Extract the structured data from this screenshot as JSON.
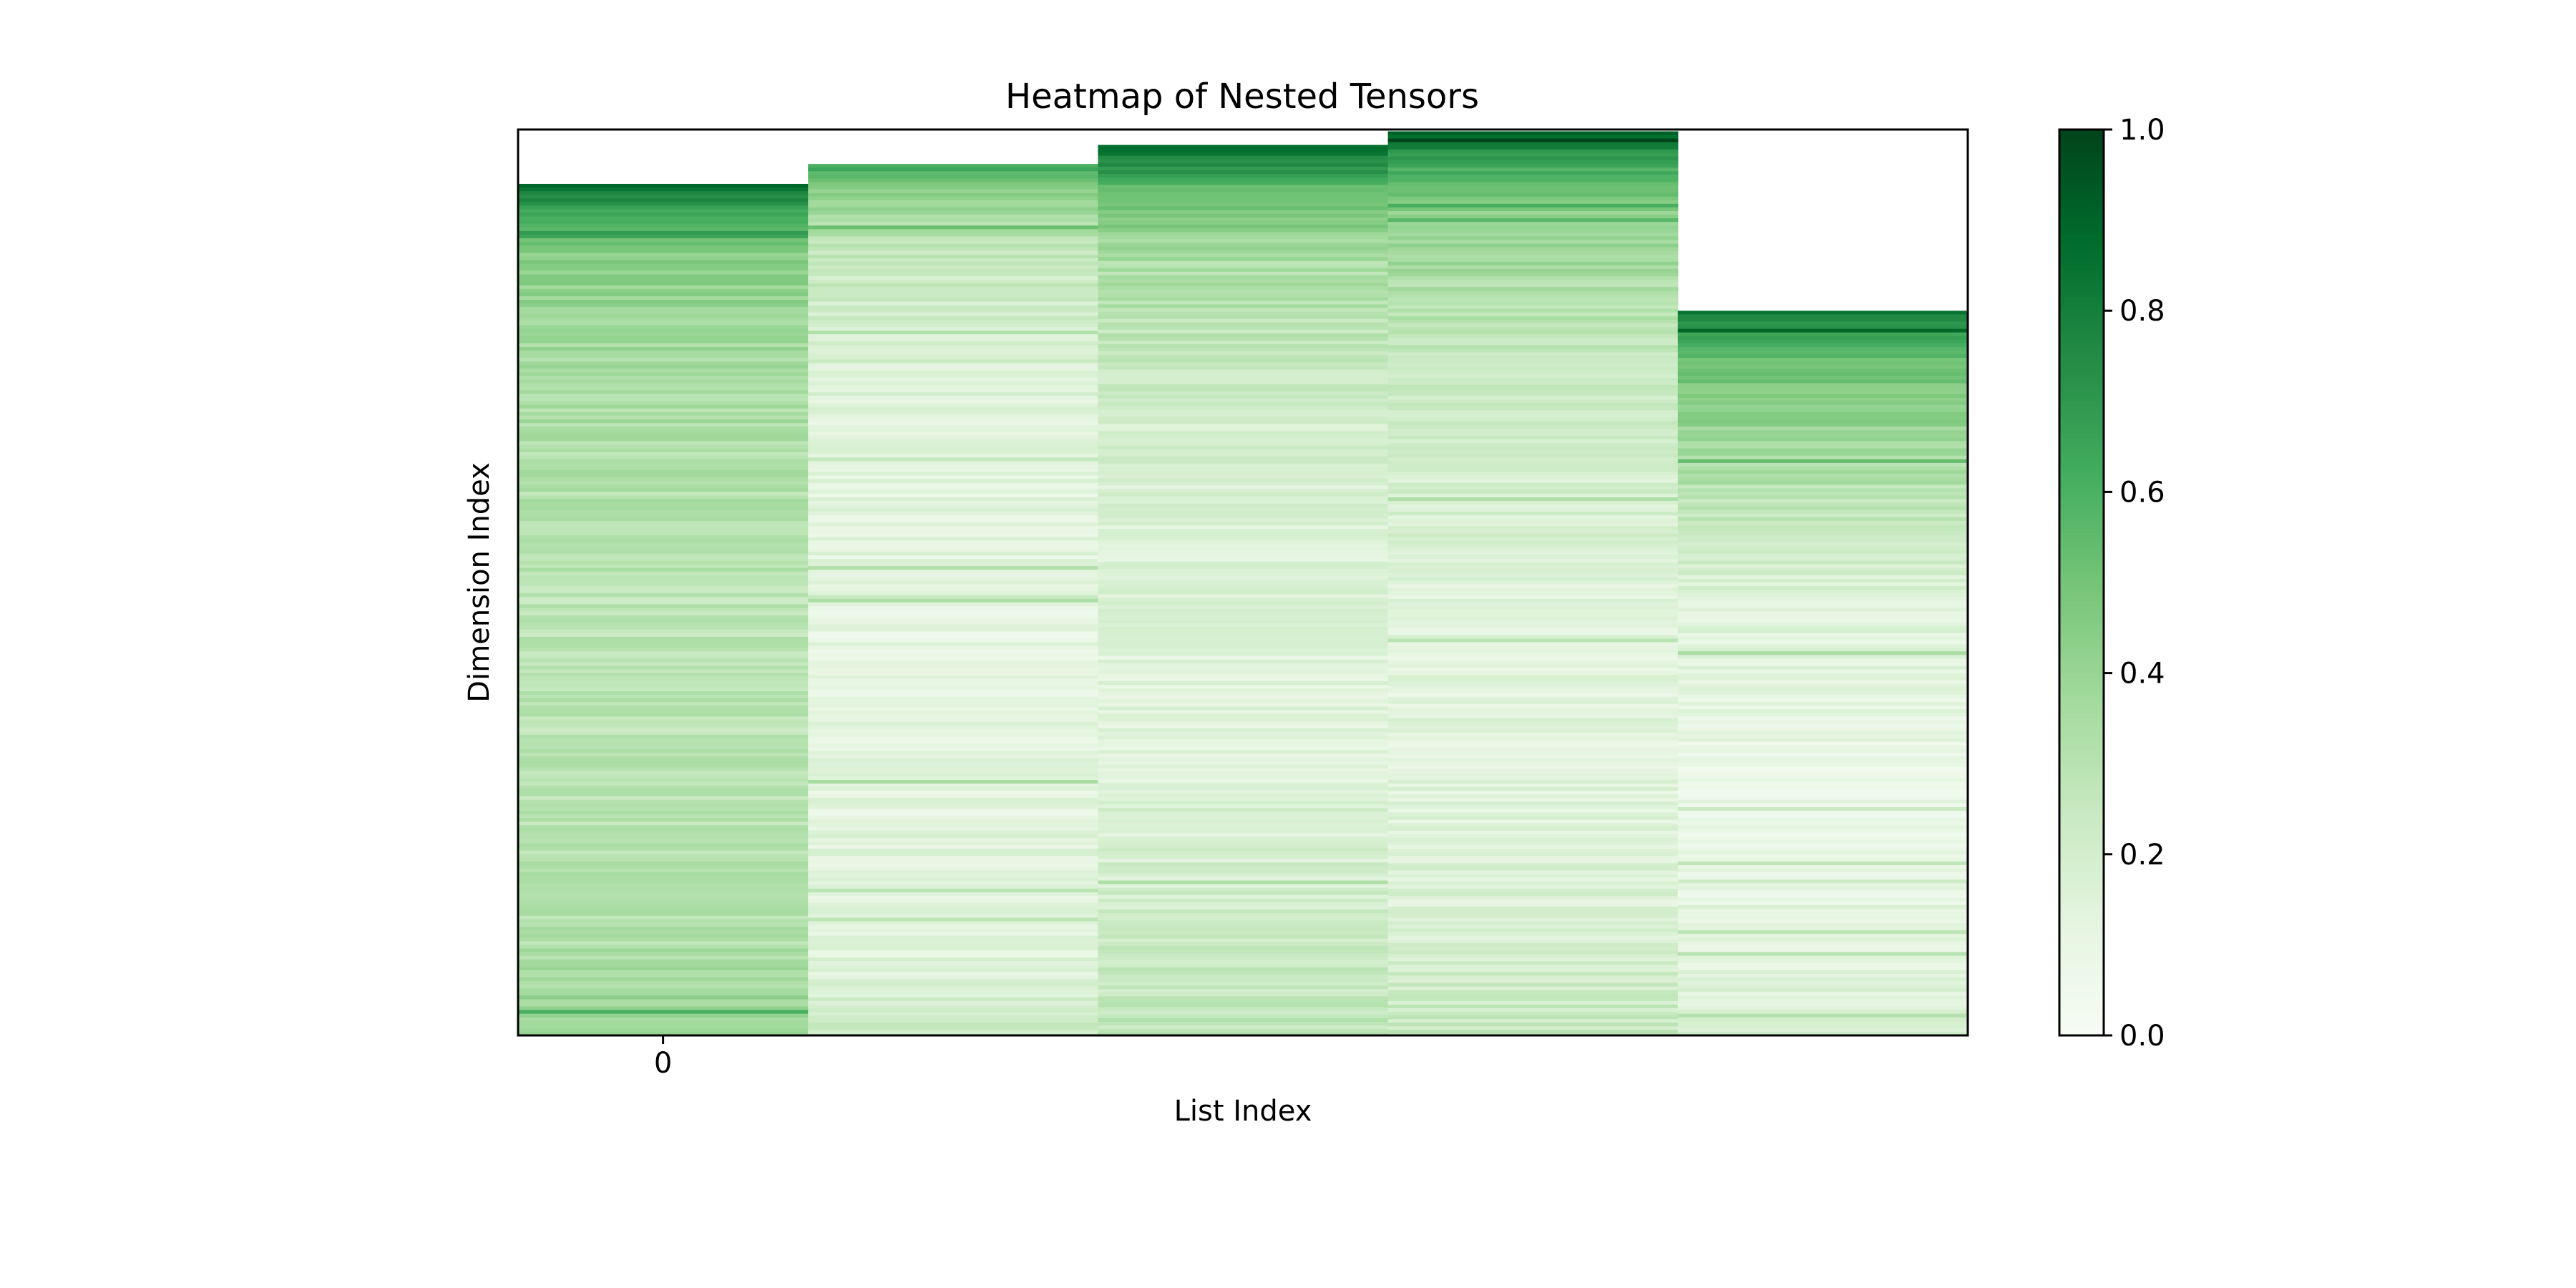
{
  "chart_data": {
    "type": "heatmap",
    "title": "Heatmap of Nested Tensors",
    "xlabel": "List Index",
    "ylabel": "Dimension Index",
    "x_ticks": [
      "0"
    ],
    "colormap": "Greens",
    "color_range": [
      0.0,
      1.0
    ],
    "colorbar_ticks": [
      "0.0",
      "0.2",
      "0.4",
      "0.6",
      "0.8",
      "1.0"
    ],
    "missing_color": "#ffffff",
    "frame_color": "#000000",
    "n_dims": 1000,
    "columns": [
      {
        "length": 940,
        "profile": [
          {
            "at": 0.0,
            "value": 0.92
          },
          {
            "at": 0.02,
            "value": 0.7
          },
          {
            "at": 0.08,
            "value": 0.45
          },
          {
            "at": 0.2,
            "value": 0.35
          },
          {
            "at": 0.5,
            "value": 0.28
          },
          {
            "at": 0.85,
            "value": 0.3
          },
          {
            "at": 1.0,
            "value": 0.4
          }
        ]
      },
      {
        "length": 962,
        "profile": [
          {
            "at": 0.0,
            "value": 0.62
          },
          {
            "at": 0.03,
            "value": 0.45
          },
          {
            "at": 0.1,
            "value": 0.25
          },
          {
            "at": 0.3,
            "value": 0.14
          },
          {
            "at": 0.6,
            "value": 0.11
          },
          {
            "at": 0.9,
            "value": 0.14
          },
          {
            "at": 1.0,
            "value": 0.22
          }
        ]
      },
      {
        "length": 983,
        "profile": [
          {
            "at": 0.0,
            "value": 0.88
          },
          {
            "at": 0.04,
            "value": 0.6
          },
          {
            "at": 0.12,
            "value": 0.35
          },
          {
            "at": 0.3,
            "value": 0.2
          },
          {
            "at": 0.6,
            "value": 0.13
          },
          {
            "at": 0.85,
            "value": 0.2
          },
          {
            "at": 1.0,
            "value": 0.28
          }
        ]
      },
      {
        "length": 998,
        "profile": [
          {
            "at": 0.0,
            "value": 0.92
          },
          {
            "at": 0.03,
            "value": 0.65
          },
          {
            "at": 0.1,
            "value": 0.4
          },
          {
            "at": 0.3,
            "value": 0.22
          },
          {
            "at": 0.6,
            "value": 0.12
          },
          {
            "at": 0.85,
            "value": 0.16
          },
          {
            "at": 1.0,
            "value": 0.25
          }
        ]
      },
      {
        "length": 800,
        "profile": [
          {
            "at": 0.0,
            "value": 0.85
          },
          {
            "at": 0.05,
            "value": 0.55
          },
          {
            "at": 0.2,
            "value": 0.35
          },
          {
            "at": 0.4,
            "value": 0.15
          },
          {
            "at": 0.7,
            "value": 0.08
          },
          {
            "at": 0.9,
            "value": 0.14
          },
          {
            "at": 1.0,
            "value": 0.2
          }
        ]
      }
    ]
  }
}
